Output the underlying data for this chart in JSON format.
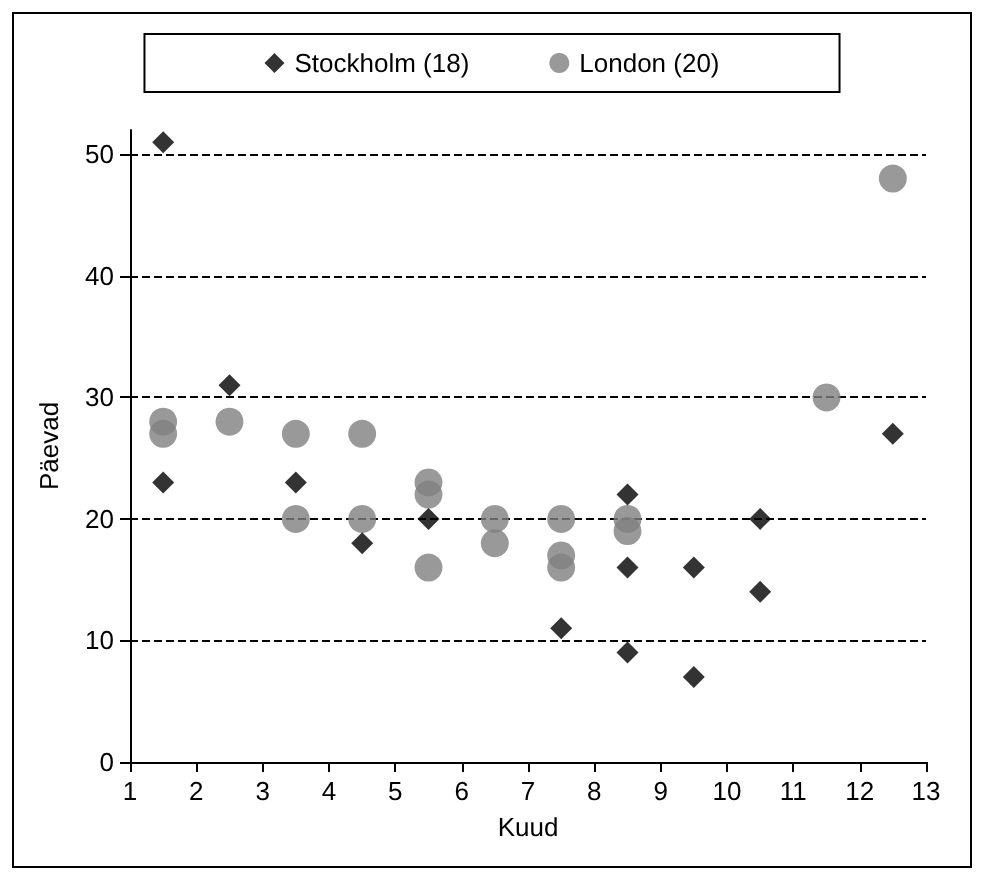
{
  "chart_data": {
    "type": "scatter",
    "xlabel": "Kuud",
    "ylabel": "Päevad",
    "xlim": [
      1,
      13
    ],
    "xticks": [
      1,
      2,
      3,
      4,
      5,
      6,
      7,
      8,
      9,
      10,
      11,
      12,
      13
    ],
    "ylim": [
      0,
      52
    ],
    "yticks": [
      0,
      10,
      20,
      30,
      40,
      50
    ],
    "grid": "y",
    "line_style": "dashed",
    "legend": "top",
    "series": [
      {
        "name": "Stockholm (18)",
        "color": "#000000",
        "marker": "diamond",
        "x": [
          1.5,
          1.5,
          2.5,
          3.5,
          4.5,
          5.5,
          7.5,
          8.5,
          8.5,
          8.5,
          9.5,
          9.5,
          10.5,
          10.5,
          12.5
        ],
        "values": [
          51,
          23,
          31,
          23,
          18,
          20,
          11,
          22,
          16,
          9,
          16,
          7,
          20,
          14,
          27
        ]
      },
      {
        "name": "London (20)",
        "color": "#808080",
        "marker": "circle",
        "x": [
          1.5,
          1.5,
          2.5,
          3.5,
          3.5,
          4.5,
          4.5,
          5.5,
          5.5,
          5.5,
          6.5,
          6.5,
          7.5,
          7.5,
          7.5,
          8.5,
          8.5,
          11.5,
          12.5
        ],
        "values": [
          28,
          27,
          28,
          27,
          20,
          27,
          20,
          23,
          22,
          16,
          20,
          18,
          20,
          17,
          16,
          20,
          19,
          30,
          48
        ]
      }
    ]
  }
}
